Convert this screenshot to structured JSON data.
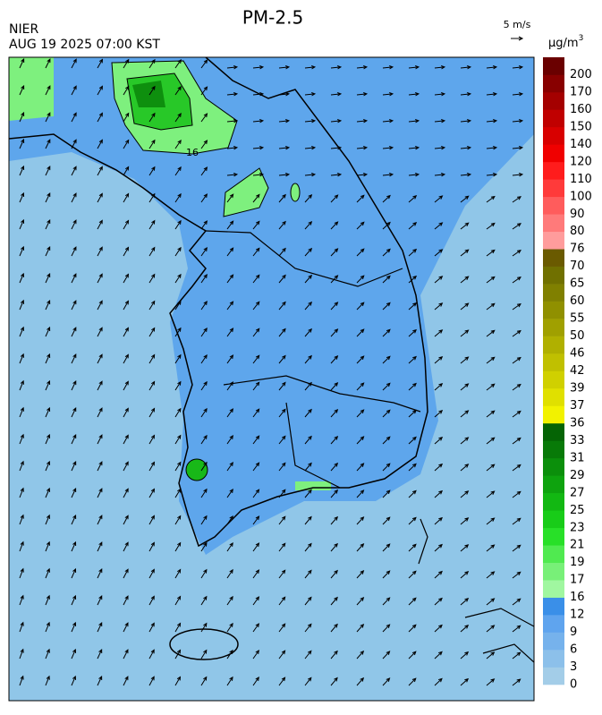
{
  "header": {
    "title": "PM-2.5",
    "agency": "NIER",
    "datetime": "AUG 19 2025 07:00 KST",
    "wind_scale": "5 m/s"
  },
  "map": {
    "contour_label": "16"
  },
  "legend": {
    "unit": "μg/m",
    "unit_power": "3",
    "levels": [
      0,
      3,
      6,
      9,
      12,
      16,
      17,
      19,
      21,
      23,
      25,
      27,
      29,
      31,
      33,
      36,
      37,
      39,
      42,
      46,
      50,
      55,
      60,
      65,
      70,
      76,
      80,
      90,
      100,
      110,
      120,
      140,
      150,
      160,
      170,
      200
    ],
    "colors": [
      "#a3cde8",
      "#8cc0ea",
      "#76b2ec",
      "#5fa4ee",
      "#3a8fe8",
      "#a0f7a0",
      "#78f078",
      "#50ea50",
      "#28e028",
      "#18cc18",
      "#12b812",
      "#0ea30e",
      "#0b8f0b",
      "#087a08",
      "#056405",
      "#f2f200",
      "#e0e000",
      "#d0d000",
      "#c0c000",
      "#b0b000",
      "#a0a000",
      "#909000",
      "#808000",
      "#707000",
      "#6a5a00",
      "#ff9c9c",
      "#ff7a7a",
      "#ff5c5c",
      "#ff3a3a",
      "#ff1c1c",
      "#f00000",
      "#d80000",
      "#c00000",
      "#a40000",
      "#880000",
      "#6a0000"
    ]
  }
}
